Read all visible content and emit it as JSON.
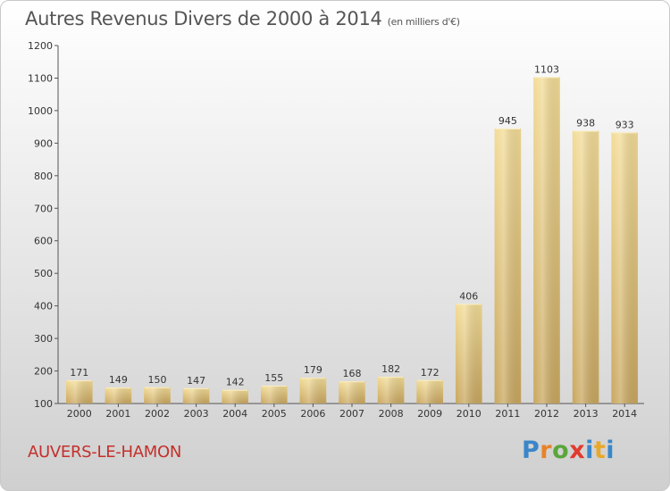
{
  "chart_data": {
    "type": "bar",
    "title": "Autres Revenus Divers de 2000 à 2014",
    "unit_label": "(en milliers d'€)",
    "categories": [
      "2000",
      "2001",
      "2002",
      "2003",
      "2004",
      "2005",
      "2006",
      "2007",
      "2008",
      "2009",
      "2010",
      "2011",
      "2012",
      "2013",
      "2014"
    ],
    "values": [
      171,
      149,
      150,
      147,
      142,
      155,
      179,
      168,
      182,
      172,
      406,
      945,
      1103,
      938,
      933
    ],
    "ylim": [
      100,
      1200
    ],
    "yticks": [
      100,
      200,
      300,
      400,
      500,
      600,
      700,
      800,
      900,
      1000,
      1100,
      1200
    ],
    "xlabel": "",
    "ylabel": "",
    "grid": false,
    "bar_color": "#e7cb83"
  },
  "place_name": "AUVERS-LE-HAMON",
  "logo": {
    "text": "Proxiti",
    "colors": [
      "#3a86c8",
      "#e8822a",
      "#5aa63a",
      "#e23b2f",
      "#3a86c8",
      "#e8a92a"
    ]
  }
}
